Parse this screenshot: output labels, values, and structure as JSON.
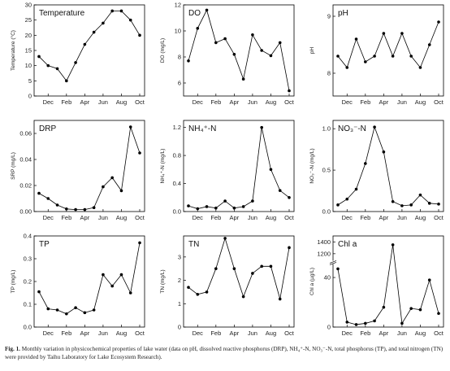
{
  "chart_data": [
    {
      "type": "line",
      "title": "Temperature",
      "y_label": "Temperature (°C)",
      "color": "#000000",
      "categories": [
        null,
        "Dec",
        null,
        "Feb",
        null,
        "Apr",
        null,
        "Jun",
        null,
        "Aug",
        null,
        "Oct"
      ],
      "values": [
        13,
        10,
        9,
        5,
        11,
        17,
        21,
        24,
        28,
        28,
        25,
        20
      ],
      "ylim": [
        0,
        30
      ],
      "yticks": [
        0,
        5,
        10,
        15,
        20,
        25,
        30
      ]
    },
    {
      "type": "line",
      "title": "DO",
      "y_label": "DO (mg/L)",
      "color": "#000000",
      "categories": [
        null,
        "Dec",
        null,
        "Feb",
        null,
        "Apr",
        null,
        "Jun",
        null,
        "Aug",
        null,
        "Oct"
      ],
      "values": [
        7.7,
        10.2,
        11.6,
        9.1,
        9.4,
        8.2,
        6.3,
        9.7,
        8.5,
        8.1,
        9.1,
        5.4
      ],
      "ylim": [
        5,
        12
      ],
      "yticks": [
        6,
        8,
        10,
        12
      ]
    },
    {
      "type": "line",
      "title": "pH",
      "y_label": "pH",
      "color": "#000000",
      "categories": [
        null,
        "Dec",
        null,
        "Feb",
        null,
        "Apr",
        null,
        "Jun",
        null,
        "Aug",
        null,
        "Oct"
      ],
      "values": [
        8.3,
        8.1,
        8.6,
        8.2,
        8.3,
        8.7,
        8.3,
        8.7,
        8.3,
        8.1,
        8.5,
        8.9
      ],
      "ylim": [
        7.6,
        9.2
      ],
      "yticks": [
        8,
        9
      ]
    },
    {
      "type": "line",
      "title": "DRP",
      "y_label": "SRP (mg/L)",
      "color": "#000000",
      "categories": [
        null,
        "Dec",
        null,
        "Feb",
        null,
        "Apr",
        null,
        "Jun",
        null,
        "Aug",
        null,
        "Oct"
      ],
      "values": [
        0.014,
        0.01,
        0.005,
        0.002,
        0.0015,
        0.0015,
        0.003,
        0.019,
        0.026,
        0.016,
        0.065,
        0.045
      ],
      "ylim": [
        0,
        0.07
      ],
      "yticks": [
        {
          "value": 0,
          "label": "0.00"
        },
        0.02,
        0.04,
        0.06
      ]
    },
    {
      "type": "line",
      "title": "NH₄⁺-N",
      "y_label": "NH₄⁺-N (mg/L)",
      "color": "#000000",
      "categories": [
        null,
        "Dec",
        null,
        "Feb",
        null,
        "Apr",
        null,
        "Jun",
        null,
        "Aug",
        null,
        "Oct"
      ],
      "values": [
        0.08,
        0.04,
        0.07,
        0.05,
        0.15,
        0.05,
        0.07,
        0.15,
        1.2,
        0.6,
        0.3,
        0.2
      ],
      "ylim": [
        0,
        1.3
      ],
      "yticks": [
        {
          "value": 0,
          "label": "0.0"
        },
        0.4,
        0.8,
        1.2
      ]
    },
    {
      "type": "line",
      "title": "NO₃⁻-N",
      "y_label": "NO₃⁻-N (mg/L)",
      "color": "#000000",
      "categories": [
        null,
        "Dec",
        null,
        "Feb",
        null,
        "Apr",
        null,
        "Jun",
        null,
        "Aug",
        null,
        "Oct"
      ],
      "values": [
        0.08,
        0.15,
        0.27,
        0.58,
        1.02,
        0.72,
        0.12,
        0.07,
        0.08,
        0.2,
        0.1,
        0.09
      ],
      "ylim": [
        0,
        1.1
      ],
      "yticks": [
        {
          "value": 0,
          "label": "0.0"
        },
        0.5,
        {
          "value": 1,
          "label": "1.0"
        }
      ]
    },
    {
      "type": "line",
      "title": "TP",
      "y_label": "TP (mg/L)",
      "color": "#000000",
      "categories": [
        null,
        "Dec",
        null,
        "Feb",
        null,
        "Apr",
        null,
        "Jun",
        null,
        "Aug",
        null,
        "Oct"
      ],
      "values": [
        0.155,
        0.08,
        0.075,
        0.058,
        0.085,
        0.063,
        0.075,
        0.23,
        0.18,
        0.23,
        0.15,
        0.37
      ],
      "ylim": [
        0,
        0.4
      ],
      "yticks": [
        {
          "value": 0,
          "label": "0.0"
        },
        0.1,
        0.2,
        0.3,
        0.4
      ]
    },
    {
      "type": "line",
      "title": "TN",
      "y_label": "TN (mg/L)",
      "color": "#000000",
      "categories": [
        null,
        "Dec",
        null,
        "Feb",
        null,
        "Apr",
        null,
        "Jun",
        null,
        "Aug",
        null,
        "Oct"
      ],
      "values": [
        1.7,
        1.4,
        1.5,
        2.5,
        3.8,
        2.5,
        1.3,
        2.3,
        2.6,
        2.6,
        1.2,
        3.4
      ],
      "ylim": [
        0,
        3.9
      ],
      "yticks": [
        0,
        1,
        2,
        3
      ]
    },
    {
      "type": "line",
      "title": "Chl a",
      "y_label": "Chl a (µg/L)",
      "color": "#000000",
      "categories": [
        null,
        "Dec",
        null,
        "Feb",
        null,
        "Apr",
        null,
        "Jun",
        null,
        "Aug",
        null,
        "Oct"
      ],
      "values": [
        47,
        4,
        2,
        3,
        5,
        16,
        1350,
        3,
        15,
        14,
        38,
        11
      ],
      "ylim": [
        0,
        1500
      ],
      "ybreak": [
        50,
        1100
      ],
      "yticks": [
        0,
        40,
        1200,
        1400
      ]
    }
  ],
  "caption": {
    "label": "Fig. 1.",
    "text": "Monthly variation in physicochemical properties of lake water (data on pH, dissolved reactive phosphorus (DRP), NH₄⁺-N, NO₃⁻-N, total phosphorus (TP), and total nitrogen (TN) were provided by Taihu Laboratory for Lake Ecosystem Research)."
  }
}
